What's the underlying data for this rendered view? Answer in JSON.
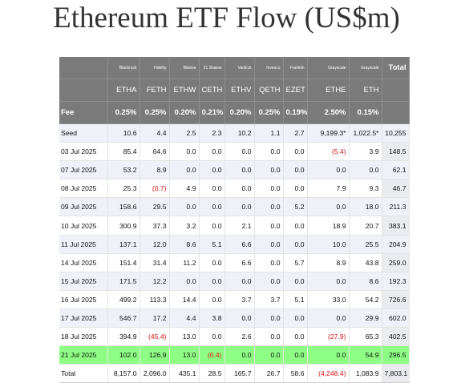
{
  "title": "Ethereum ETF Flow (US$m)",
  "columns": {
    "issuers": [
      "",
      "Blackrock",
      "Fidelity",
      "Bitwise",
      "21 Shares",
      "VanEck",
      "Invesco",
      "Franklin",
      "Grayscale",
      "Grayscale",
      "Total"
    ],
    "tickers": [
      "",
      "ETHA",
      "FETH",
      "ETHW",
      "CETH",
      "ETHV",
      "QETH",
      "EZET",
      "ETHE",
      "ETH",
      ""
    ],
    "fees": [
      "Fee",
      "0.25%",
      "0.25%",
      "0.20%",
      "0.21%",
      "0.20%",
      "0.25%",
      "0.19%",
      "2.50%",
      "0.15%",
      ""
    ]
  },
  "rows": [
    {
      "label": "Seed",
      "values": [
        "10.6",
        "4.4",
        "2.5",
        "2.3",
        "10.2",
        "1.1",
        "2.7",
        "9,199.3*",
        "1,022.5*",
        "10,255"
      ]
    },
    {
      "label": "03 Jul 2025",
      "values": [
        "85.4",
        "64.6",
        "0.0",
        "0.0",
        "0.0",
        "0.0",
        "0.0",
        "(5.4)",
        "3.9",
        "148.5"
      ]
    },
    {
      "label": "07 Jul 2025",
      "values": [
        "53.2",
        "8.9",
        "0.0",
        "0.0",
        "0.0",
        "0.0",
        "0.0",
        "0.0",
        "0.0",
        "62.1"
      ]
    },
    {
      "label": "08 Jul 2025",
      "values": [
        "25.3",
        "(0.7)",
        "4.9",
        "0.0",
        "0.0",
        "0.0",
        "0.0",
        "7.9",
        "9.3",
        "46.7"
      ]
    },
    {
      "label": "09 Jul 2025",
      "values": [
        "158.6",
        "29.5",
        "0.0",
        "0.0",
        "0.0",
        "0.0",
        "5.2",
        "0.0",
        "18.0",
        "211.3"
      ]
    },
    {
      "label": "10 Jul 2025",
      "values": [
        "300.9",
        "37.3",
        "3.2",
        "0.0",
        "2.1",
        "0.0",
        "0.0",
        "18.9",
        "20.7",
        "383.1"
      ]
    },
    {
      "label": "11 Jul 2025",
      "values": [
        "137.1",
        "12.0",
        "8.6",
        "5.1",
        "6.6",
        "0.0",
        "0.0",
        "10.0",
        "25.5",
        "204.9"
      ]
    },
    {
      "label": "14 Jul 2025",
      "values": [
        "151.4",
        "31.4",
        "11.2",
        "0.0",
        "6.6",
        "0.0",
        "5.7",
        "8.9",
        "43.8",
        "259.0"
      ]
    },
    {
      "label": "15 Jul 2025",
      "values": [
        "171.5",
        "12.2",
        "0.0",
        "0.0",
        "0.0",
        "0.0",
        "0.0",
        "0.0",
        "8.6",
        "192.3"
      ]
    },
    {
      "label": "16 Jul 2025",
      "values": [
        "499.2",
        "113.3",
        "14.4",
        "0.0",
        "3.7",
        "3.7",
        "5.1",
        "33.0",
        "54.2",
        "726.6"
      ]
    },
    {
      "label": "17 Jul 2025",
      "values": [
        "546.7",
        "17.2",
        "4.4",
        "3.8",
        "0.0",
        "0.0",
        "0.0",
        "0.0",
        "29.9",
        "602.0"
      ]
    },
    {
      "label": "18 Jul 2025",
      "values": [
        "394.9",
        "(45.4)",
        "13.0",
        "0.0",
        "2.6",
        "0.0",
        "0.0",
        "(27.9)",
        "65.3",
        "402.5"
      ]
    },
    {
      "label": "21 Jul 2025",
      "values": [
        "102.0",
        "126.9",
        "13.0",
        "(0.4)",
        "0.0",
        "0.0",
        "0.0",
        "0.0",
        "54.9",
        "296.5"
      ],
      "highlight": true
    },
    {
      "label": "Total",
      "values": [
        "8,157.0",
        "2,096.0",
        "435.1",
        "28.5",
        "165.7",
        "26.7",
        "58.6",
        "(4,248.4)",
        "1,083.9",
        "7,803.1"
      ]
    }
  ],
  "colors": {
    "header_bg": "#7a7a7a",
    "highlight_row": "#8efe84",
    "negative_text": "#dd1111",
    "shaded_row": "#eef1f8"
  }
}
